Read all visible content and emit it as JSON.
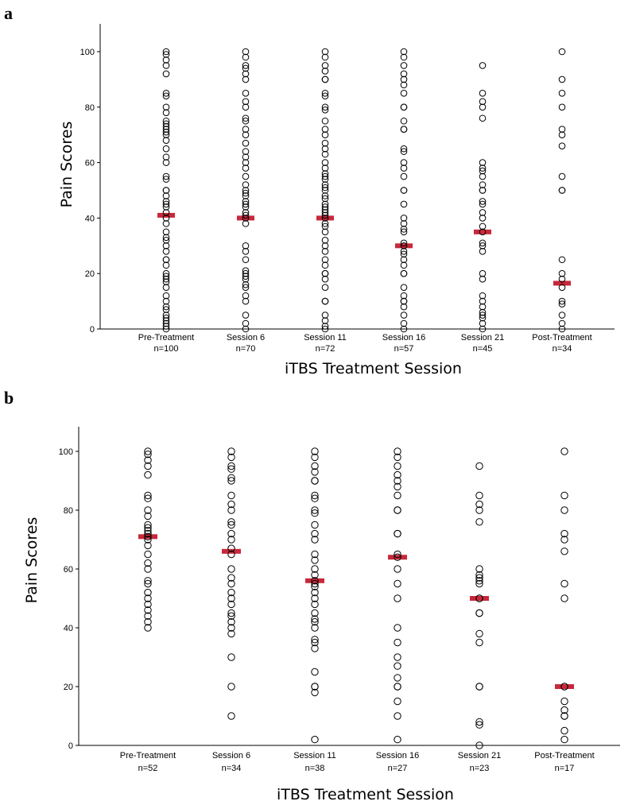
{
  "panels": [
    {
      "letter": "a",
      "chart_data": {
        "type": "scatter",
        "subtype": "dot-plot with median markers",
        "title": "",
        "xlabel": "iTBS Treatment Session",
        "ylabel": "Pain Scores",
        "ylim": [
          0,
          110
        ],
        "yticks": [
          0,
          20,
          40,
          60,
          80,
          100
        ],
        "categories": [
          "Pre-Treatment",
          "Session 6",
          "Session 11",
          "Session 16",
          "Session 21",
          "Post-Treatment"
        ],
        "n_labels": [
          "n=100",
          "n=70",
          "n=72",
          "n=57",
          "n=45",
          "n=34"
        ],
        "marker_color": "#c8283b",
        "series": [
          {
            "name": "Pre-Treatment",
            "median": 41,
            "values": [
              100,
              99,
              97,
              95,
              92,
              85,
              84,
              80,
              78,
              75,
              74,
              73,
              72,
              71,
              70,
              68,
              65,
              62,
              60,
              55,
              54,
              50,
              50,
              48,
              46,
              45,
              44,
              42,
              40,
              38,
              35,
              33,
              32,
              30,
              28,
              25,
              25,
              23,
              20,
              19,
              18,
              17,
              15,
              12,
              10,
              8,
              7,
              5,
              4,
              3,
              2,
              1,
              0
            ]
          },
          {
            "name": "Session 6",
            "median": 40,
            "values": [
              100,
              98,
              95,
              94,
              92,
              90,
              85,
              82,
              80,
              76,
              75,
              72,
              70,
              67,
              64,
              62,
              60,
              58,
              55,
              52,
              50,
              49,
              48,
              46,
              45,
              44,
              42,
              41,
              40,
              38,
              30,
              28,
              25,
              21,
              20,
              19,
              18,
              16,
              15,
              12,
              10,
              5,
              2,
              0
            ]
          },
          {
            "name": "Session 11",
            "median": 40,
            "values": [
              100,
              98,
              95,
              93,
              90,
              90,
              85,
              84,
              80,
              79,
              75,
              72,
              70,
              67,
              65,
              63,
              60,
              58,
              56,
              55,
              54,
              52,
              51,
              50,
              48,
              47,
              45,
              44,
              43,
              42,
              41,
              40,
              38,
              37,
              35,
              32,
              30,
              28,
              25,
              23,
              20,
              20,
              18,
              15,
              10,
              10,
              5,
              3,
              1,
              0
            ]
          },
          {
            "name": "Session 16",
            "median": 30,
            "values": [
              100,
              98,
              95,
              92,
              90,
              88,
              85,
              80,
              80,
              75,
              72,
              72,
              65,
              64,
              60,
              58,
              55,
              50,
              50,
              45,
              40,
              38,
              36,
              35,
              31,
              30,
              28,
              27,
              25,
              23,
              20,
              20,
              15,
              12,
              10,
              10,
              8,
              5,
              2,
              0
            ]
          },
          {
            "name": "Session 21",
            "median": 35,
            "values": [
              95,
              85,
              82,
              80,
              76,
              60,
              58,
              57,
              55,
              52,
              50,
              50,
              46,
              45,
              42,
              40,
              37,
              35,
              31,
              30,
              28,
              20,
              18,
              12,
              10,
              8,
              6,
              5,
              4,
              2,
              0
            ]
          },
          {
            "name": "Post-Treatment",
            "median": 16.5,
            "values": [
              100,
              90,
              85,
              80,
              72,
              70,
              66,
              55,
              50,
              50,
              25,
              20,
              18,
              15,
              10,
              9,
              5,
              2,
              0
            ]
          }
        ]
      }
    },
    {
      "letter": "b",
      "chart_data": {
        "type": "scatter",
        "subtype": "dot-plot with median markers",
        "title": "",
        "xlabel": "iTBS Treatment Session",
        "ylabel": "Pain Scores",
        "ylim": [
          0,
          110
        ],
        "yticks": [
          0,
          20,
          40,
          60,
          80,
          100
        ],
        "categories": [
          "Pre-Treatment",
          "Session 6",
          "Session 11",
          "Session 16",
          "Session 21",
          "Post-Treatment"
        ],
        "n_labels": [
          "n=52",
          "n=34",
          "n=38",
          "n=27",
          "n=23",
          "n=17"
        ],
        "marker_color": "#c8283b",
        "series": [
          {
            "name": "Pre-Treatment",
            "median": 71,
            "values": [
              100,
              99,
              97,
              95,
              92,
              85,
              84,
              80,
              78,
              75,
              74,
              73,
              72,
              71,
              70,
              68,
              65,
              62,
              60,
              56,
              55,
              52,
              50,
              48,
              46,
              44,
              42,
              40
            ]
          },
          {
            "name": "Session 6",
            "median": 66,
            "values": [
              100,
              98,
              95,
              94,
              91,
              90,
              85,
              82,
              80,
              76,
              75,
              72,
              70,
              67,
              65,
              60,
              57,
              55,
              52,
              50,
              48,
              45,
              44,
              42,
              40,
              38,
              30,
              20,
              10
            ]
          },
          {
            "name": "Session 11",
            "median": 56,
            "values": [
              100,
              98,
              95,
              93,
              90,
              90,
              85,
              84,
              80,
              79,
              75,
              72,
              70,
              65,
              63,
              60,
              58,
              56,
              55,
              54,
              52,
              50,
              48,
              45,
              43,
              42,
              40,
              36,
              35,
              33,
              25,
              20,
              20,
              18,
              2
            ]
          },
          {
            "name": "Session 16",
            "median": 64,
            "values": [
              100,
              98,
              95,
              92,
              90,
              88,
              85,
              80,
              80,
              72,
              72,
              65,
              64,
              60,
              55,
              50,
              40,
              35,
              30,
              27,
              23,
              20,
              20,
              15,
              10,
              2
            ]
          },
          {
            "name": "Session 21",
            "median": 50,
            "values": [
              95,
              85,
              82,
              80,
              76,
              60,
              58,
              57,
              56,
              55,
              50,
              50,
              45,
              45,
              38,
              35,
              20,
              20,
              8,
              7,
              0
            ]
          },
          {
            "name": "Post-Treatment",
            "median": 20,
            "values": [
              100,
              85,
              80,
              72,
              70,
              66,
              55,
              50,
              20,
              20,
              15,
              12,
              10,
              10,
              5,
              2
            ]
          }
        ]
      }
    }
  ]
}
